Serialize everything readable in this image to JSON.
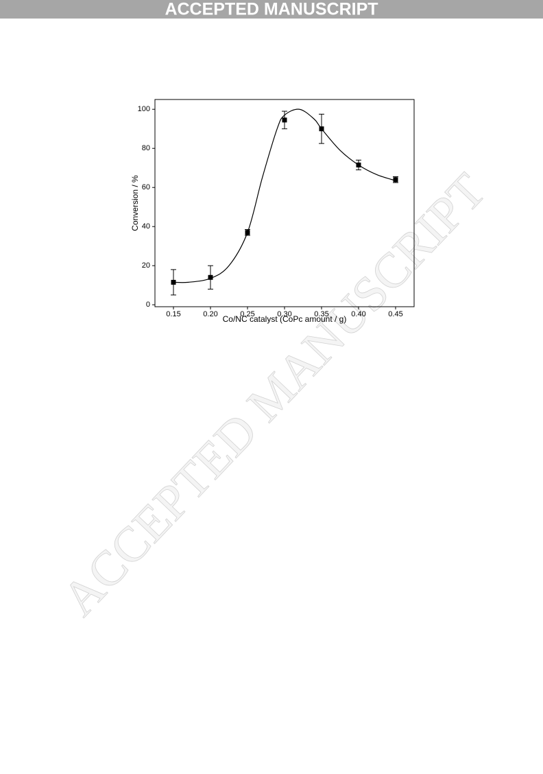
{
  "header": {
    "banner": "ACCEPTED MANUSCRIPT"
  },
  "watermark": "ACCEPTED MANUSCRIPT",
  "chart_data": {
    "type": "scatter",
    "x_label": "Co/NC catalyst (CoPc amount / g)",
    "y_label": "Conversion / %",
    "x": [
      0.15,
      0.2,
      0.25,
      0.3,
      0.35,
      0.4,
      0.45
    ],
    "series": [
      {
        "color": "#000000",
        "values": [
          11.5,
          14,
          37,
          94.5,
          90,
          71.5,
          64
        ],
        "errors": [
          6.5,
          6,
          1.5,
          4.5,
          7.5,
          2.5,
          1.5
        ]
      }
    ],
    "fit": {
      "color": "#000000",
      "x": [
        0.15,
        0.17,
        0.2,
        0.225,
        0.25,
        0.27,
        0.29,
        0.3,
        0.32,
        0.34,
        0.35,
        0.375,
        0.4,
        0.425,
        0.45
      ],
      "values": [
        11.5,
        11.5,
        13.5,
        20,
        37,
        65,
        90,
        97,
        100,
        95,
        90,
        79,
        71.5,
        66.5,
        63.5
      ]
    },
    "xlim": [
      0.125,
      0.475
    ],
    "ylim": [
      -1,
      105
    ],
    "xticks": [
      0.15,
      {
        "value": 0.2,
        "label": "0.20"
      },
      0.25,
      {
        "value": 0.3,
        "label": "0.30"
      },
      0.35,
      {
        "value": 0.4,
        "label": "0.40"
      },
      0.45
    ],
    "yticks": [
      0,
      20,
      40,
      60,
      80,
      100
    ]
  }
}
